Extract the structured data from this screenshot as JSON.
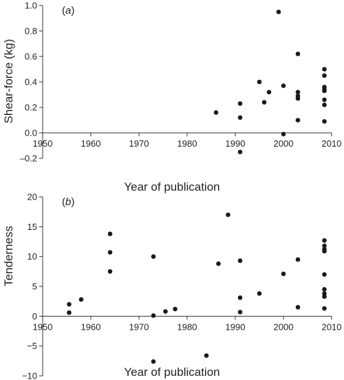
{
  "chart_data": [
    {
      "type": "scatter",
      "panel_label": "a",
      "title": "",
      "xlabel": "Year of publication",
      "ylabel": "Shear-force (kg)",
      "xlim": [
        1950,
        2010
      ],
      "ylim": [
        -0.2,
        1.0
      ],
      "xticks": [
        1950,
        1960,
        1970,
        1980,
        1990,
        2000,
        2010
      ],
      "xtick_labels": [
        "1950",
        "1960",
        "1970",
        "1980",
        "1990",
        "2000",
        "2010"
      ],
      "yticks": [
        -0.2,
        0.0,
        0.2,
        0.4,
        0.6,
        0.8,
        1.0
      ],
      "ytick_labels": [
        "–0.2",
        "0.0",
        "0.2",
        "0.4",
        "0.6",
        "0.8",
        "1.0"
      ],
      "grid": false,
      "marker_color": "#1a1a1a",
      "points": [
        {
          "x": 1986,
          "y": 0.16
        },
        {
          "x": 1991,
          "y": 0.23
        },
        {
          "x": 1991,
          "y": 0.12
        },
        {
          "x": 1991,
          "y": -0.15
        },
        {
          "x": 1995,
          "y": 0.4
        },
        {
          "x": 1996,
          "y": 0.24
        },
        {
          "x": 1997,
          "y": 0.32
        },
        {
          "x": 1999,
          "y": 0.95
        },
        {
          "x": 2000,
          "y": 0.37
        },
        {
          "x": 2000,
          "y": -0.01
        },
        {
          "x": 2003,
          "y": 0.62
        },
        {
          "x": 2003,
          "y": 0.32
        },
        {
          "x": 2003,
          "y": 0.29
        },
        {
          "x": 2003,
          "y": 0.27
        },
        {
          "x": 2003,
          "y": 0.1
        },
        {
          "x": 2008.5,
          "y": 0.5
        },
        {
          "x": 2008.5,
          "y": 0.45
        },
        {
          "x": 2008.5,
          "y": 0.36
        },
        {
          "x": 2008.5,
          "y": 0.34
        },
        {
          "x": 2008.5,
          "y": 0.33
        },
        {
          "x": 2008.5,
          "y": 0.26
        },
        {
          "x": 2008.5,
          "y": 0.22
        },
        {
          "x": 2008.5,
          "y": 0.09
        }
      ]
    },
    {
      "type": "scatter",
      "panel_label": "b",
      "title": "",
      "xlabel": "Year of publication",
      "ylabel": "Tenderness",
      "xlim": [
        1950,
        2010
      ],
      "ylim": [
        -10,
        20
      ],
      "xticks": [
        1950,
        1960,
        1970,
        1980,
        1990,
        2000,
        2010
      ],
      "xtick_labels": [
        "1950",
        "1960",
        "1970",
        "1980",
        "1990",
        "2000",
        "2010"
      ],
      "yticks": [
        -10,
        -5,
        0,
        5,
        10,
        15,
        20
      ],
      "ytick_labels": [
        "−10",
        "−5",
        "0",
        "5",
        "10",
        "15",
        "20"
      ],
      "grid": false,
      "marker_color": "#1a1a1a",
      "points": [
        {
          "x": 1955.5,
          "y": 2.0
        },
        {
          "x": 1955.5,
          "y": 0.6
        },
        {
          "x": 1958,
          "y": 2.8
        },
        {
          "x": 1964,
          "y": 13.8
        },
        {
          "x": 1964,
          "y": 10.7
        },
        {
          "x": 1964,
          "y": 7.5
        },
        {
          "x": 1973,
          "y": 10.0
        },
        {
          "x": 1973,
          "y": 0.1
        },
        {
          "x": 1973,
          "y": -7.6
        },
        {
          "x": 1975.5,
          "y": 0.8
        },
        {
          "x": 1977.5,
          "y": 1.2
        },
        {
          "x": 1984,
          "y": -6.6
        },
        {
          "x": 1986.5,
          "y": 8.8
        },
        {
          "x": 1988.5,
          "y": 17.0
        },
        {
          "x": 1991,
          "y": 9.3
        },
        {
          "x": 1991,
          "y": 3.1
        },
        {
          "x": 1991,
          "y": 0.7
        },
        {
          "x": 1995,
          "y": 3.8
        },
        {
          "x": 2000,
          "y": 7.1
        },
        {
          "x": 2003,
          "y": 9.5
        },
        {
          "x": 2003,
          "y": 1.5
        },
        {
          "x": 2008.5,
          "y": 12.7
        },
        {
          "x": 2008.5,
          "y": 11.8
        },
        {
          "x": 2008.5,
          "y": 11.2
        },
        {
          "x": 2008.5,
          "y": 10.9
        },
        {
          "x": 2008.5,
          "y": 7.0
        },
        {
          "x": 2008.5,
          "y": 4.5
        },
        {
          "x": 2008.5,
          "y": 3.8
        },
        {
          "x": 2008.5,
          "y": 3.3
        },
        {
          "x": 2008.5,
          "y": 1.3
        }
      ]
    }
  ]
}
